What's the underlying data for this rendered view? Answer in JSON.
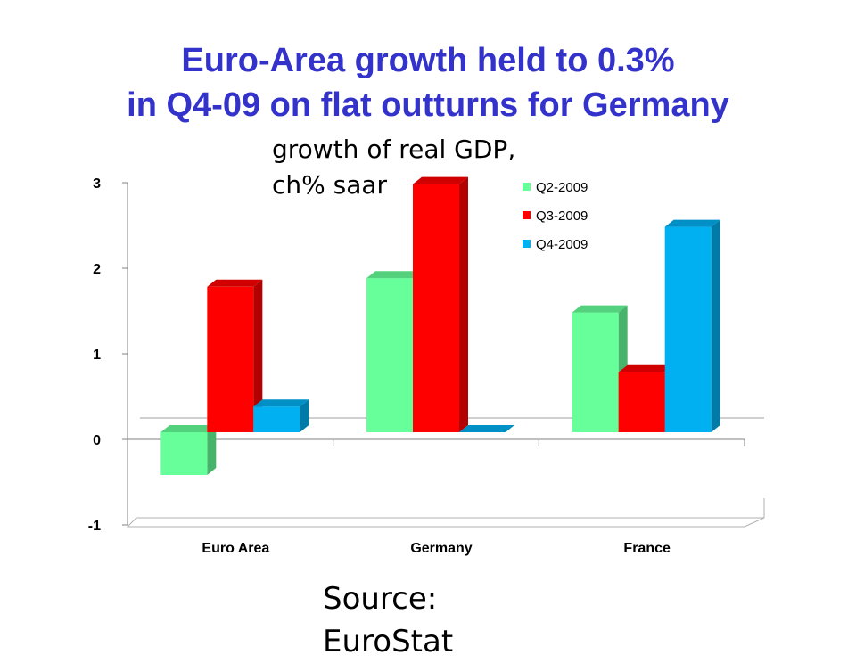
{
  "slide": {
    "title_line1": "Euro-Area growth held to 0.3%",
    "title_line2": "in Q4-09 on flat outturns for Germany",
    "subtitle_line1": "growth of real GDP,",
    "subtitle_line2": "ch% saar",
    "source_line1": "Source:",
    "source_line2": "EuroStat"
  },
  "colors": {
    "title": "#3333cc",
    "Q2-2009": "#66ff99",
    "Q3-2009": "#ff0000",
    "Q4-2009": "#00b0f0"
  },
  "chart_data": {
    "type": "bar",
    "categories": [
      "Euro Area",
      "Germany",
      "France"
    ],
    "series": [
      {
        "name": "Q2-2009",
        "values": [
          -0.5,
          1.8,
          1.4
        ]
      },
      {
        "name": "Q3-2009",
        "values": [
          1.7,
          2.9,
          0.7
        ]
      },
      {
        "name": "Q4-2009",
        "values": [
          0.3,
          0.0,
          2.4
        ]
      }
    ],
    "ylim": [
      -1,
      3
    ],
    "yticks": [
      "-1",
      "0",
      "1",
      "2",
      "3"
    ],
    "legend": "top-right",
    "grid": false
  }
}
